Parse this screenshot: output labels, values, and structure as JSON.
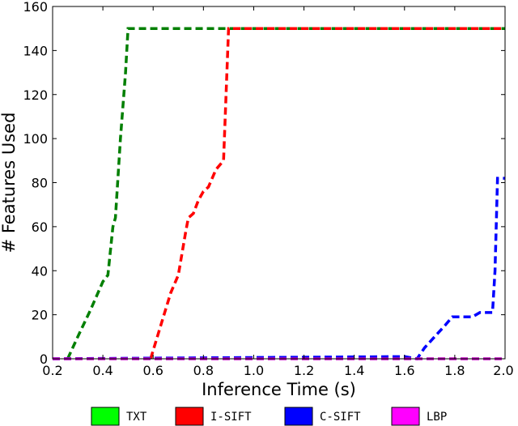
{
  "chart_data": {
    "type": "line",
    "title": "",
    "xlabel": "Inference Time (s)",
    "ylabel": "# Features Used",
    "xlim": [
      0.2,
      2.0
    ],
    "ylim": [
      0,
      160
    ],
    "xticks": [
      "0.2",
      "0.4",
      "0.6",
      "0.8",
      "1.0",
      "1.2",
      "1.4",
      "1.6",
      "1.8",
      "2.0"
    ],
    "yticks": [
      "0",
      "20",
      "40",
      "60",
      "80",
      "100",
      "120",
      "140",
      "160"
    ],
    "grid": false,
    "legend_position": "bottom, below plot",
    "series": [
      {
        "name": "TXT",
        "color": "#007f00",
        "legend_color": "#00ff00",
        "x": [
          0.26,
          0.3,
          0.35,
          0.4,
          0.42,
          0.44,
          0.45,
          0.47,
          0.49,
          0.5,
          2.0
        ],
        "y": [
          0,
          10,
          22,
          35,
          38,
          60,
          64,
          100,
          130,
          150,
          150
        ]
      },
      {
        "name": "I-SIFT",
        "color": "#ff0000",
        "legend_color": "#ff0000",
        "x": [
          0.59,
          0.63,
          0.67,
          0.7,
          0.73,
          0.74,
          0.76,
          0.78,
          0.8,
          0.82,
          0.85,
          0.88,
          0.89,
          0.9,
          2.0
        ],
        "y": [
          0,
          15,
          30,
          38,
          58,
          64,
          66,
          72,
          76,
          78,
          86,
          90,
          120,
          150,
          150
        ]
      },
      {
        "name": "C-SIFT",
        "color": "#0000ff",
        "legend_color": "#0000ff",
        "x": [
          0.2,
          1.6,
          1.65,
          1.68,
          1.72,
          1.76,
          1.79,
          1.82,
          1.87,
          1.9,
          1.95,
          1.96,
          1.97,
          2.0
        ],
        "y": [
          0,
          1,
          0,
          5,
          10,
          15,
          19,
          19,
          19,
          21,
          21,
          40,
          82,
          82
        ]
      },
      {
        "name": "LBP",
        "color": "#bf00bf",
        "legend_color": "#ff00ff",
        "x": [
          0.2,
          2.0
        ],
        "y": [
          0,
          0
        ]
      }
    ]
  }
}
